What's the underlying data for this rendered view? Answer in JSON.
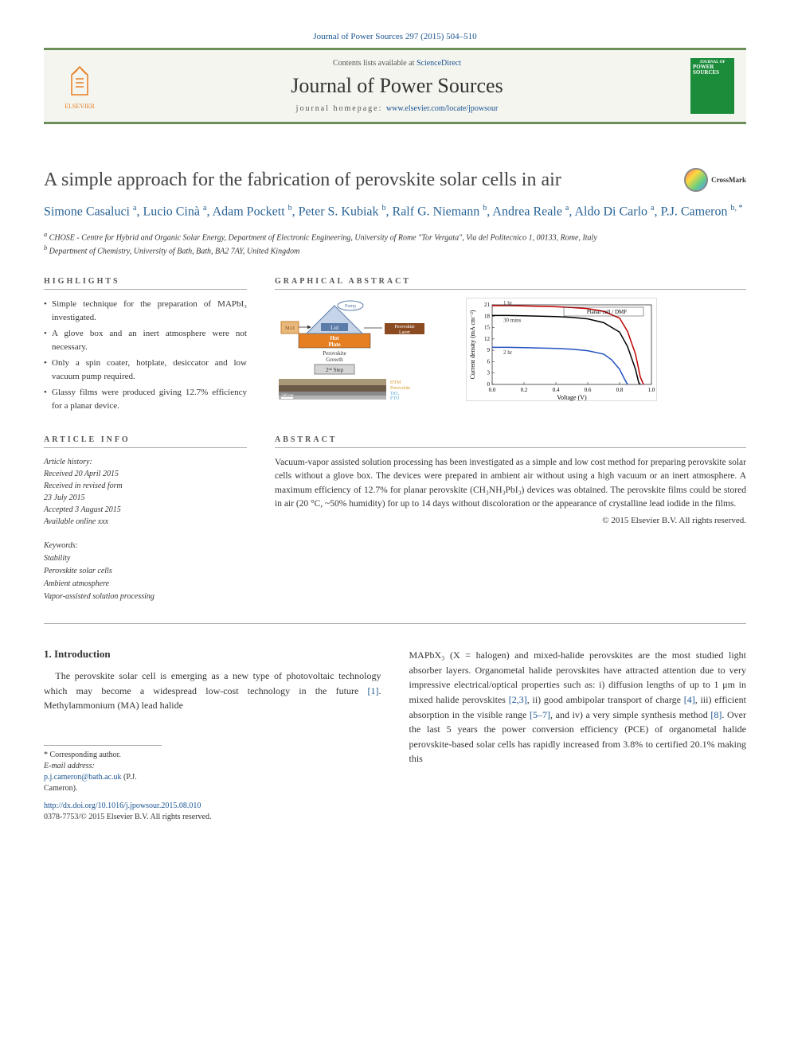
{
  "citation": "Journal of Power Sources 297 (2015) 504–510",
  "header": {
    "contents_prefix": "Contents lists available at ",
    "contents_link": "ScienceDirect",
    "journal_name": "Journal of Power Sources",
    "homepage_prefix": "journal homepage: ",
    "homepage_link": "www.elsevier.com/locate/jpowsour",
    "publisher": "ELSEVIER",
    "cover_text": "POWER SOURCES"
  },
  "article": {
    "title": "A simple approach for the fabrication of perovskite solar cells in air",
    "crossmark_label": "CrossMark"
  },
  "authors": [
    {
      "name": "Simone Casaluci",
      "aff": "a"
    },
    {
      "name": "Lucio Cinà",
      "aff": "a"
    },
    {
      "name": "Adam Pockett",
      "aff": "b"
    },
    {
      "name": "Peter S. Kubiak",
      "aff": "b"
    },
    {
      "name": "Ralf G. Niemann",
      "aff": "b"
    },
    {
      "name": "Andrea Reale",
      "aff": "a"
    },
    {
      "name": "Aldo Di Carlo",
      "aff": "a"
    },
    {
      "name": "P.J. Cameron",
      "aff": "b, *"
    }
  ],
  "affiliations": {
    "a": "CHOSE - Centre for Hybrid and Organic Solar Energy, Department of Electronic Engineering, University of Rome \"Tor Vergata\", Via del Politecnico 1, 00133, Rome, Italy",
    "b": "Department of Chemistry, University of Bath, Bath, BA2 7AY, United Kingdom"
  },
  "highlights": {
    "label": "HIGHLIGHTS",
    "items": [
      "Simple technique for the preparation of MAPbI₃ investigated.",
      "A glove box and an inert atmosphere were not necessary.",
      "Only a spin coater, hotplate, desiccator and low vacuum pump required.",
      "Glassy films were produced giving 12.7% efficiency for a planar device."
    ]
  },
  "graphical_abstract": {
    "label": "GRAPHICAL ABSTRACT",
    "diagram": {
      "pump_label": "Pump",
      "lid_label": "Lid",
      "hotplate_label": "Hot\nPlate",
      "layer_label": "Perovskite\nLayer",
      "growth_label": "Perovskite\nGrowth",
      "step_label": "2nd Step",
      "sem_layers": [
        "HTM",
        "Perovskite",
        "TiO₂",
        "FTO"
      ],
      "scale_bar": "500 nm",
      "colors": {
        "mai": "#e8b87a",
        "lid": "#5b7ca8",
        "hotplate": "#e67e22",
        "perovskite": "#8b4a1f",
        "sem": "#6b5a48"
      }
    },
    "chart": {
      "type": "line",
      "title": "",
      "xlabel": "Voltage (V)",
      "ylabel": "Current density (mA cm⁻²)",
      "xlim": [
        0.0,
        1.0
      ],
      "ylim": [
        0,
        21
      ],
      "xticks": [
        0.0,
        0.2,
        0.4,
        0.6,
        0.8,
        1.0
      ],
      "yticks": [
        0,
        3,
        6,
        9,
        12,
        15,
        18,
        21
      ],
      "legend_title": "Planar cell / DMF",
      "series": [
        {
          "label": "1 hr",
          "color": "#c00000",
          "points": [
            [
              0.0,
              20.8
            ],
            [
              0.1,
              20.8
            ],
            [
              0.2,
              20.7
            ],
            [
              0.3,
              20.6
            ],
            [
              0.4,
              20.5
            ],
            [
              0.5,
              20.3
            ],
            [
              0.6,
              20.0
            ],
            [
              0.7,
              19.3
            ],
            [
              0.8,
              17.5
            ],
            [
              0.85,
              14.0
            ],
            [
              0.9,
              8.0
            ],
            [
              0.93,
              2.0
            ],
            [
              0.95,
              0.0
            ]
          ]
        },
        {
          "label": "30 mins",
          "color": "#000000",
          "points": [
            [
              0.0,
              18.2
            ],
            [
              0.1,
              18.2
            ],
            [
              0.2,
              18.1
            ],
            [
              0.3,
              18.0
            ],
            [
              0.4,
              17.9
            ],
            [
              0.5,
              17.7
            ],
            [
              0.6,
              17.3
            ],
            [
              0.7,
              16.3
            ],
            [
              0.8,
              13.8
            ],
            [
              0.85,
              10.0
            ],
            [
              0.9,
              4.0
            ],
            [
              0.92,
              0.5
            ],
            [
              0.93,
              0.0
            ]
          ]
        },
        {
          "label": "2 hr",
          "color": "#2050c0",
          "points": [
            [
              0.0,
              9.8
            ],
            [
              0.1,
              9.8
            ],
            [
              0.2,
              9.7
            ],
            [
              0.3,
              9.6
            ],
            [
              0.4,
              9.5
            ],
            [
              0.5,
              9.3
            ],
            [
              0.6,
              8.9
            ],
            [
              0.7,
              8.0
            ],
            [
              0.75,
              6.5
            ],
            [
              0.8,
              4.0
            ],
            [
              0.83,
              1.5
            ],
            [
              0.85,
              0.0
            ]
          ]
        }
      ],
      "label_fontsize": 8,
      "tick_fontsize": 7,
      "background_color": "#ffffff",
      "grid_color": "#e5e5e5"
    }
  },
  "article_info": {
    "label": "ARTICLE INFO",
    "history_label": "Article history:",
    "history": [
      "Received 20 April 2015",
      "Received in revised form",
      "23 July 2015",
      "Accepted 3 August 2015",
      "Available online xxx"
    ],
    "keywords_label": "Keywords:",
    "keywords": [
      "Stability",
      "Perovskite solar cells",
      "Ambient atmosphere",
      "Vapor-assisted solution processing"
    ]
  },
  "abstract": {
    "label": "ABSTRACT",
    "text": "Vacuum-vapor assisted solution processing has been investigated as a simple and low cost method for preparing perovskite solar cells without a glove box. The devices were prepared in ambient air without using a high vacuum or an inert atmosphere. A maximum efficiency of 12.7% for planar perovskite (CH₃NH₃PbI₃) devices was obtained. The perovskite films could be stored in air (20 °C, ~50% humidity) for up to 14 days without discoloration or the appearance of crystalline lead iodide in the films.",
    "copyright": "© 2015 Elsevier B.V. All rights reserved."
  },
  "body": {
    "section_heading": "1. Introduction",
    "col1": "The perovskite solar cell is emerging as a new type of photovoltaic technology which may become a widespread low-cost technology in the future [1]. Methylammonium (MA) lead halide",
    "col2": "MAPbX₃ (X = halogen) and mixed-halide perovskites are the most studied light absorber layers. Organometal halide perovskites have attracted attention due to very impressive electrical/optical properties such as: i) diffusion lengths of up to 1 μm in mixed halide perovskites [2,3], ii) good ambipolar transport of charge [4], iii) efficient absorption in the visible range [5–7], and iv) a very simple synthesis method [8]. Over the last 5 years the power conversion efficiency (PCE) of organometal halide perovskite-based solar cells has rapidly increased from 3.8% to certified 20.1% making this",
    "refs": {
      "r1": "[1]",
      "r23": "[2,3]",
      "r4": "[4]",
      "r57": "[5–7]",
      "r8": "[8]"
    }
  },
  "corresponding": {
    "label": "* Corresponding author.",
    "email_label": "E-mail address: ",
    "email": "p.j.cameron@bath.ac.uk",
    "name": " (P.J. Cameron)."
  },
  "footer": {
    "doi": "http://dx.doi.org/10.1016/j.jpowsour.2015.08.010",
    "issn": "0378-7753/© 2015 Elsevier B.V. All rights reserved."
  }
}
